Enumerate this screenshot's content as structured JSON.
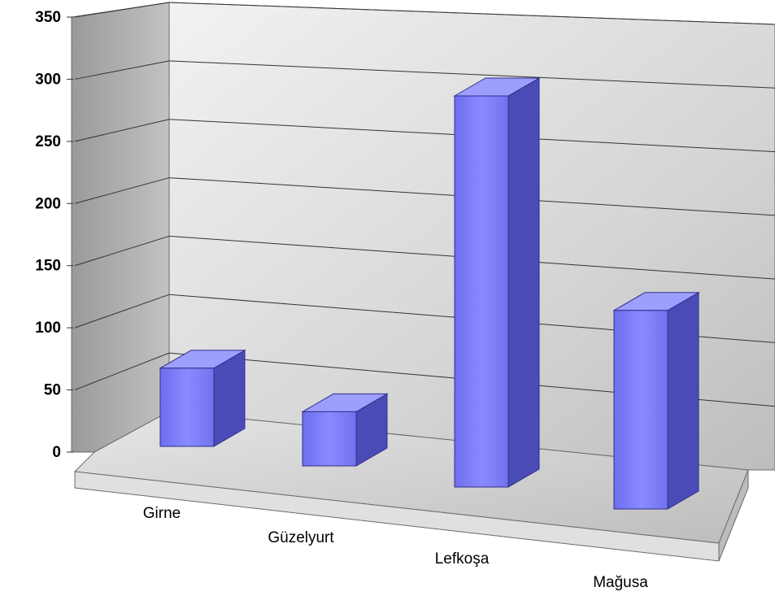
{
  "chart_data": {
    "type": "bar",
    "categories": [
      "Girne",
      "Güzelyurt",
      "Lefkoşa",
      "Mağusa"
    ],
    "values": [
      65,
      45,
      325,
      165
    ],
    "ylim": [
      0,
      350
    ],
    "yticks": [
      0,
      50,
      100,
      150,
      200,
      250,
      300,
      350
    ],
    "grid": true,
    "style": "3d-column",
    "colors": {
      "bar_front": "#7F7FF5",
      "bar_side": "#4B4BB8",
      "bar_top": "#9E9EFF",
      "back_wall": "#D8D8D8",
      "side_wall": "#A8A8A8",
      "floor": "#D0D0D0"
    }
  }
}
